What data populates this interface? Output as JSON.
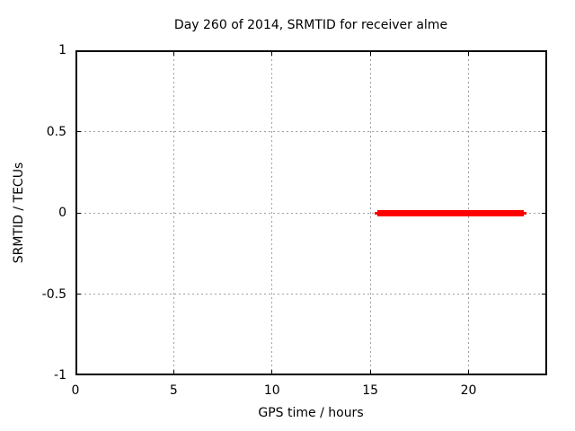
{
  "chart_data": {
    "type": "line",
    "title": "Day 260 of 2014, SRMTID for receiver alme",
    "xlabel": "GPS time / hours",
    "ylabel": "SRMTID / TECUs",
    "xlim": [
      0,
      24
    ],
    "ylim": [
      -1,
      1
    ],
    "xticks": [
      0,
      5,
      10,
      15,
      20
    ],
    "yticks": [
      -1,
      -0.5,
      0,
      0.5,
      1
    ],
    "grid": "dashed, at every tick, mirrored inward tick marks on all four borders",
    "legend": "none",
    "colors": {
      "background": "#ffffff",
      "border": "#000000",
      "grid": "#a0a0a0",
      "text": "#000000",
      "series": "#ff0000"
    },
    "series": [
      {
        "name": "SRMTID",
        "color": "#ff0000",
        "style": "thick horizontal line",
        "segments": [
          {
            "x_start": 15.2,
            "x_end": 22.95,
            "y": 0
          }
        ]
      }
    ]
  }
}
